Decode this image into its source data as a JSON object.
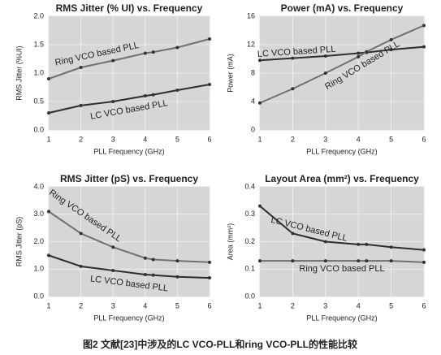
{
  "chart_data": [
    {
      "type": "line",
      "title": "RMS Jitter (% UI) vs.  Frequency",
      "x_label": "PLL Frequency (GHz)",
      "y_label": "RMS Jitter (%UI)",
      "x": [
        1,
        2,
        3,
        4,
        4.25,
        5,
        6
      ],
      "xlim": [
        1,
        6
      ],
      "xticks": [
        1,
        2,
        3,
        4,
        5,
        6
      ],
      "ylim": [
        0,
        2
      ],
      "yticks": [
        {
          "value": 0,
          "label": "0.0"
        },
        {
          "value": 0.5,
          "label": "0.5"
        },
        {
          "value": 1,
          "label": "1.0"
        },
        {
          "value": 1.5,
          "label": "1.5"
        },
        {
          "value": 2,
          "label": "2.0"
        }
      ],
      "grid": true,
      "series": [
        {
          "name": "Ring VCO based PLL",
          "color": "#707070",
          "values": [
            0.9,
            1.1,
            1.22,
            1.35,
            1.37,
            1.45,
            1.6
          ]
        },
        {
          "name": "LC VCO based PLL",
          "color": "#2e2e2e",
          "values": [
            0.3,
            0.43,
            0.5,
            0.6,
            0.62,
            0.7,
            0.8
          ]
        }
      ]
    },
    {
      "type": "line",
      "title": "Power (mA) vs.  Frequency",
      "x_label": "PLL Frequency (GHz)",
      "y_label": "Power (mA)",
      "x": [
        1,
        2,
        3,
        4,
        4.25,
        5,
        6
      ],
      "xlim": [
        1,
        6
      ],
      "xticks": [
        1,
        2,
        3,
        4,
        5,
        6
      ],
      "ylim": [
        0,
        16
      ],
      "yticks": [
        0,
        4,
        8,
        12,
        16
      ],
      "grid": true,
      "series": [
        {
          "name": "LC VCO based PLL",
          "color": "#2e2e2e",
          "values": [
            9.8,
            10.1,
            10.4,
            10.8,
            10.9,
            11.3,
            11.7
          ]
        },
        {
          "name": "Ring VCO based PLL",
          "color": "#707070",
          "values": [
            3.8,
            5.8,
            8.0,
            10.3,
            11.0,
            12.7,
            14.7
          ]
        }
      ]
    },
    {
      "type": "line",
      "title": "RMS Jitter (pS) vs.  Frequency",
      "x_label": "PLL Frequency (GHz)",
      "y_label": "RMS Jitter (pS)",
      "x": [
        1,
        2,
        3,
        4,
        4.25,
        5,
        6
      ],
      "xlim": [
        1,
        6
      ],
      "xticks": [
        1,
        2,
        3,
        4,
        5,
        6
      ],
      "ylim": [
        0,
        4
      ],
      "yticks": [
        {
          "value": 0,
          "label": "0.0"
        },
        {
          "value": 1,
          "label": "1.0"
        },
        {
          "value": 2,
          "label": "2.0"
        },
        {
          "value": 3,
          "label": "3.0"
        },
        {
          "value": 4,
          "label": "4.0"
        }
      ],
      "grid": true,
      "series": [
        {
          "name": "Ring VCO based PLL",
          "color": "#707070",
          "values": [
            3.1,
            2.3,
            1.8,
            1.4,
            1.35,
            1.3,
            1.25
          ]
        },
        {
          "name": "LC VCO based PLL",
          "color": "#2e2e2e",
          "values": [
            1.5,
            1.1,
            0.95,
            0.8,
            0.78,
            0.72,
            0.68
          ]
        }
      ]
    },
    {
      "type": "line",
      "title": "Layout Area (mm²) vs.  Frequency",
      "x_label": "PLL Frequency (GHz)",
      "y_label": "Area (mm²)",
      "x": [
        1,
        2,
        3,
        4,
        4.25,
        5,
        6
      ],
      "xlim": [
        1,
        6
      ],
      "xticks": [
        1,
        2,
        3,
        4,
        5,
        6
      ],
      "ylim": [
        0,
        0.4
      ],
      "yticks": [
        {
          "value": 0,
          "label": "0.0"
        },
        0.1,
        0.2,
        0.3,
        0.4
      ],
      "grid": true,
      "series": [
        {
          "name": "LC VCO based PLL",
          "color": "#2e2e2e",
          "values": [
            0.33,
            0.23,
            0.2,
            0.19,
            0.19,
            0.18,
            0.17
          ]
        },
        {
          "name": "Ring VCO based PLL",
          "color": "#707070",
          "values": [
            0.13,
            0.13,
            0.13,
            0.13,
            0.13,
            0.13,
            0.125
          ]
        }
      ]
    }
  ],
  "caption": "图2 文献[23]中涉及的LC VCO-PLL和ring VCO-PLL的性能比较"
}
